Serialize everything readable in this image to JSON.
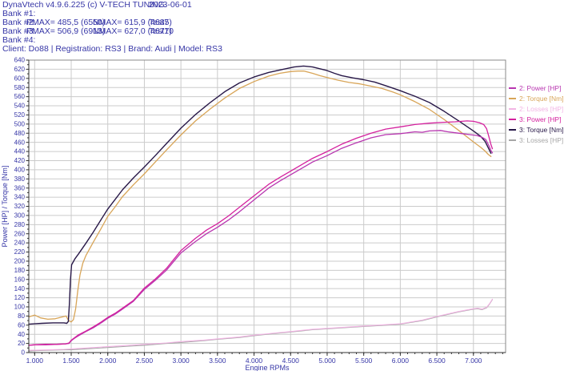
{
  "colors": {
    "text_navy": "#3535a6",
    "grid": "#cbcbcb",
    "plot_border": "#8a8a8a",
    "axis": "#303030",
    "background": "#ffffff"
  },
  "header": {
    "app_title": "DynaVtech v4.9.6.225 (c) V-TECH TUNING.",
    "date": "2023-06-01",
    "banks": [
      {
        "label": "Bank #1:",
        "pmax": "",
        "nmax": "",
        "test": ""
      },
      {
        "label": "Bank #2:",
        "pmax": "PMAX= 485,5 (6550)",
        "nmax": "NMAX= 615,9 (4685)",
        "test": "Test7"
      },
      {
        "label": "Bank #3:",
        "pmax": "PMAX= 506,9 (6913)",
        "nmax": "NMAX= 627,0 (4677)",
        "test": "Test10"
      },
      {
        "label": "Bank #4:",
        "pmax": "",
        "nmax": "",
        "test": ""
      }
    ],
    "client_line": "Client: Do88 | Registration: RS3 | Brand: Audi | Model: RS3"
  },
  "chart_data": {
    "type": "line",
    "title": "",
    "xlabel": "Engine RPMs",
    "ylabel": "Power [HP] / Torque [Nm]",
    "xlim": [
      920,
      7440
    ],
    "ylim": [
      0,
      640
    ],
    "grid": true,
    "legend_position": "right",
    "x_major_ticks": [
      {
        "value": 1000,
        "label": "1.000"
      },
      {
        "value": 1500,
        "label": "1.500"
      },
      {
        "value": 2000,
        "label": "2.000"
      },
      {
        "value": 2500,
        "label": "2.500"
      },
      {
        "value": 3000,
        "label": "3.000"
      },
      {
        "value": 3500,
        "label": "3.500"
      },
      {
        "value": 4000,
        "label": "4.000"
      },
      {
        "value": 4500,
        "label": "4.500"
      },
      {
        "value": 5000,
        "label": "5.000"
      },
      {
        "value": 5500,
        "label": "5.500"
      },
      {
        "value": 6000,
        "label": "6.000"
      },
      {
        "value": 6500,
        "label": "6.500"
      },
      {
        "value": 7000,
        "label": "7.000"
      }
    ],
    "x_minor_step": 100,
    "y_major_step": 20,
    "y_minor_step": 10,
    "series": [
      {
        "name": "3: Losses [HP]",
        "color": "#a6a6a6",
        "width": 1.1,
        "points": [
          [
            920,
            3
          ],
          [
            1000,
            4
          ],
          [
            1200,
            5
          ],
          [
            1400,
            6
          ],
          [
            1500,
            6
          ],
          [
            1700,
            8
          ],
          [
            2000,
            11
          ],
          [
            2300,
            14
          ],
          [
            2500,
            16
          ],
          [
            2800,
            20
          ],
          [
            3000,
            22
          ],
          [
            3300,
            26
          ],
          [
            3500,
            29
          ],
          [
            3800,
            33
          ],
          [
            4000,
            37
          ],
          [
            4300,
            42
          ],
          [
            4500,
            45
          ],
          [
            4800,
            50
          ],
          [
            5000,
            52
          ],
          [
            5300,
            55
          ],
          [
            5500,
            57
          ],
          [
            5800,
            60
          ],
          [
            6000,
            62
          ],
          [
            6300,
            70
          ],
          [
            6500,
            78
          ],
          [
            6800,
            89
          ],
          [
            7000,
            95
          ],
          [
            7060,
            96
          ],
          [
            7120,
            94
          ],
          [
            7180,
            98
          ],
          [
            7220,
            106
          ],
          [
            7260,
            116
          ]
        ]
      },
      {
        "name": "2: Losses [HP]",
        "color": "#f2b4e4",
        "width": 1.1,
        "points": [
          [
            920,
            5
          ],
          [
            1000,
            5
          ],
          [
            1200,
            6
          ],
          [
            1400,
            7
          ],
          [
            1500,
            8
          ],
          [
            1700,
            10
          ],
          [
            2000,
            13
          ],
          [
            2300,
            16
          ],
          [
            2500,
            18
          ],
          [
            2800,
            21
          ],
          [
            3000,
            24
          ],
          [
            3300,
            27
          ],
          [
            3500,
            30
          ],
          [
            3800,
            34
          ],
          [
            4000,
            38
          ],
          [
            4300,
            43
          ],
          [
            4500,
            46
          ],
          [
            4800,
            51
          ],
          [
            5000,
            53
          ],
          [
            5300,
            56
          ],
          [
            5500,
            58
          ],
          [
            5800,
            61
          ],
          [
            6000,
            63
          ],
          [
            6300,
            71
          ],
          [
            6500,
            79
          ],
          [
            6800,
            90
          ],
          [
            7000,
            96
          ],
          [
            7060,
            97
          ],
          [
            7120,
            95
          ],
          [
            7180,
            99
          ],
          [
            7220,
            107
          ],
          [
            7260,
            117
          ]
        ]
      },
      {
        "name": "2: Torque [Nm]",
        "color": "#d8a558",
        "width": 1.3,
        "points": [
          [
            920,
            78
          ],
          [
            1000,
            82
          ],
          [
            1080,
            76
          ],
          [
            1180,
            73
          ],
          [
            1280,
            74
          ],
          [
            1380,
            78
          ],
          [
            1430,
            80
          ],
          [
            1465,
            70
          ],
          [
            1500,
            67
          ],
          [
            1530,
            72
          ],
          [
            1560,
            95
          ],
          [
            1590,
            135
          ],
          [
            1620,
            170
          ],
          [
            1660,
            196
          ],
          [
            1700,
            212
          ],
          [
            1800,
            241
          ],
          [
            1900,
            269
          ],
          [
            2000,
            298
          ],
          [
            2100,
            319
          ],
          [
            2200,
            341
          ],
          [
            2350,
            367
          ],
          [
            2500,
            391
          ],
          [
            2650,
            417
          ],
          [
            2800,
            443
          ],
          [
            3000,
            476
          ],
          [
            3200,
            507
          ],
          [
            3400,
            533
          ],
          [
            3600,
            557
          ],
          [
            3800,
            578
          ],
          [
            4000,
            593
          ],
          [
            4200,
            605
          ],
          [
            4350,
            611
          ],
          [
            4500,
            615
          ],
          [
            4600,
            616
          ],
          [
            4685,
            616
          ],
          [
            4800,
            611
          ],
          [
            4900,
            606
          ],
          [
            5000,
            602
          ],
          [
            5150,
            596
          ],
          [
            5300,
            591
          ],
          [
            5450,
            588
          ],
          [
            5600,
            583
          ],
          [
            5750,
            578
          ],
          [
            5900,
            570
          ],
          [
            6000,
            564
          ],
          [
            6200,
            549
          ],
          [
            6400,
            532
          ],
          [
            6600,
            510
          ],
          [
            6800,
            486
          ],
          [
            7000,
            461
          ],
          [
            7100,
            449
          ],
          [
            7160,
            441
          ],
          [
            7200,
            434
          ],
          [
            7240,
            429
          ]
        ]
      },
      {
        "name": "3: Torque [Nm]",
        "color": "#281848",
        "width": 1.4,
        "points": [
          [
            920,
            62
          ],
          [
            1000,
            63
          ],
          [
            1100,
            64
          ],
          [
            1250,
            65
          ],
          [
            1400,
            65
          ],
          [
            1440,
            64
          ],
          [
            1460,
            68
          ],
          [
            1475,
            105
          ],
          [
            1490,
            160
          ],
          [
            1505,
            192
          ],
          [
            1550,
            205
          ],
          [
            1600,
            216
          ],
          [
            1700,
            239
          ],
          [
            1800,
            263
          ],
          [
            1900,
            289
          ],
          [
            2000,
            314
          ],
          [
            2100,
            335
          ],
          [
            2200,
            356
          ],
          [
            2350,
            382
          ],
          [
            2500,
            406
          ],
          [
            2650,
            431
          ],
          [
            2800,
            457
          ],
          [
            3000,
            491
          ],
          [
            3200,
            521
          ],
          [
            3400,
            547
          ],
          [
            3600,
            571
          ],
          [
            3800,
            590
          ],
          [
            4000,
            603
          ],
          [
            4200,
            613
          ],
          [
            4400,
            620
          ],
          [
            4550,
            625
          ],
          [
            4677,
            627
          ],
          [
            4800,
            625
          ],
          [
            4900,
            621
          ],
          [
            5000,
            617
          ],
          [
            5100,
            611
          ],
          [
            5200,
            606
          ],
          [
            5350,
            601
          ],
          [
            5500,
            597
          ],
          [
            5650,
            592
          ],
          [
            5800,
            584
          ],
          [
            6000,
            573
          ],
          [
            6200,
            561
          ],
          [
            6400,
            547
          ],
          [
            6600,
            528
          ],
          [
            6800,
            507
          ],
          [
            7000,
            485
          ],
          [
            7100,
            473
          ],
          [
            7160,
            462
          ],
          [
            7200,
            449
          ],
          [
            7240,
            436
          ]
        ]
      },
      {
        "name": "2: Power [HP]",
        "color": "#b836b0",
        "width": 1.3,
        "points": [
          [
            920,
            16
          ],
          [
            1000,
            17
          ],
          [
            1150,
            17
          ],
          [
            1300,
            18
          ],
          [
            1420,
            19
          ],
          [
            1470,
            20
          ],
          [
            1500,
            26
          ],
          [
            1550,
            32
          ],
          [
            1600,
            37
          ],
          [
            1700,
            46
          ],
          [
            1800,
            54
          ],
          [
            1900,
            64
          ],
          [
            2000,
            75
          ],
          [
            2100,
            84
          ],
          [
            2200,
            95
          ],
          [
            2350,
            112
          ],
          [
            2500,
            138
          ],
          [
            2650,
            158
          ],
          [
            2800,
            180
          ],
          [
            3000,
            218
          ],
          [
            3200,
            243
          ],
          [
            3350,
            260
          ],
          [
            3500,
            274
          ],
          [
            3650,
            290
          ],
          [
            3800,
            308
          ],
          [
            4000,
            334
          ],
          [
            4200,
            360
          ],
          [
            4350,
            375
          ],
          [
            4500,
            389
          ],
          [
            4650,
            403
          ],
          [
            4800,
            417
          ],
          [
            5000,
            431
          ],
          [
            5200,
            447
          ],
          [
            5400,
            459
          ],
          [
            5600,
            470
          ],
          [
            5800,
            477
          ],
          [
            6000,
            479
          ],
          [
            6100,
            481
          ],
          [
            6200,
            483
          ],
          [
            6300,
            482
          ],
          [
            6400,
            485
          ],
          [
            6550,
            486
          ],
          [
            6650,
            483
          ],
          [
            6750,
            481
          ],
          [
            6850,
            479
          ],
          [
            6950,
            477
          ],
          [
            7050,
            475
          ],
          [
            7120,
            471
          ],
          [
            7170,
            466
          ],
          [
            7210,
            453
          ],
          [
            7240,
            442
          ],
          [
            7260,
            437
          ]
        ]
      },
      {
        "name": "3: Power [HP]",
        "color": "#d4219e",
        "width": 1.3,
        "points": [
          [
            920,
            16
          ],
          [
            1000,
            17
          ],
          [
            1150,
            18
          ],
          [
            1300,
            18
          ],
          [
            1420,
            19
          ],
          [
            1470,
            21
          ],
          [
            1500,
            27
          ],
          [
            1550,
            33
          ],
          [
            1600,
            39
          ],
          [
            1700,
            47
          ],
          [
            1800,
            56
          ],
          [
            1900,
            66
          ],
          [
            2000,
            77
          ],
          [
            2100,
            86
          ],
          [
            2200,
            97
          ],
          [
            2350,
            114
          ],
          [
            2500,
            141
          ],
          [
            2650,
            161
          ],
          [
            2800,
            184
          ],
          [
            3000,
            223
          ],
          [
            3200,
            250
          ],
          [
            3350,
            268
          ],
          [
            3500,
            282
          ],
          [
            3650,
            299
          ],
          [
            3800,
            318
          ],
          [
            4000,
            343
          ],
          [
            4200,
            368
          ],
          [
            4350,
            383
          ],
          [
            4500,
            397
          ],
          [
            4650,
            411
          ],
          [
            4800,
            425
          ],
          [
            5000,
            440
          ],
          [
            5200,
            456
          ],
          [
            5400,
            469
          ],
          [
            5600,
            480
          ],
          [
            5800,
            489
          ],
          [
            6000,
            494
          ],
          [
            6200,
            499
          ],
          [
            6400,
            502
          ],
          [
            6600,
            504
          ],
          [
            6750,
            505
          ],
          [
            6913,
            507
          ],
          [
            7000,
            506
          ],
          [
            7080,
            503
          ],
          [
            7140,
            499
          ],
          [
            7180,
            490
          ],
          [
            7210,
            473
          ],
          [
            7240,
            455
          ],
          [
            7260,
            446
          ]
        ]
      }
    ],
    "legend": [
      {
        "label": "2: Power [HP]",
        "color": "#b836b0"
      },
      {
        "label": "2: Torque [Nm]",
        "color": "#d8a558"
      },
      {
        "label": "2: Losses [HP]",
        "color": "#f2b4e4"
      },
      {
        "label": "3: Power [HP]",
        "color": "#d4219e"
      },
      {
        "label": "3: Torque [Nm]",
        "color": "#281848"
      },
      {
        "label": "3: Losses [HP]",
        "color": "#a6a6a6"
      }
    ]
  }
}
